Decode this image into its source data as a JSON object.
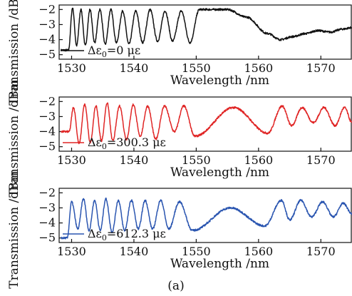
{
  "caption": "(a)",
  "chart_data": [
    {
      "type": "line",
      "xlabel": "Wavelength /nm",
      "ylabel": "Transmission /dBm",
      "xlim": [
        1528,
        1575
      ],
      "ylim": [
        -5.3,
        -1.7
      ],
      "xticks": [
        1530,
        1540,
        1550,
        1560,
        1570
      ],
      "yticks": [
        -2,
        -3,
        -4,
        -5
      ],
      "legend": {
        "prefix": "Δε",
        "subscript": "0",
        "value": "=0 με",
        "placement": "bottom-left"
      },
      "series": [
        {
          "color": "#111111",
          "x": [
            1529.5,
            1530.8,
            1532.2,
            1533.7,
            1535.4,
            1537.2,
            1539.2,
            1541.4,
            1543.8,
            1546.2,
            1549.0,
            1552.0,
            1555.0,
            1558.0,
            1561.5,
            1563.5,
            1565.5,
            1567.5,
            1569.5,
            1571.5,
            1573.5,
            1575
          ],
          "valley": [
            -4.7,
            -4.4,
            -4.4,
            -4.2,
            -4.3,
            -4.2,
            -4.3,
            -4.2,
            -4.1,
            -4.1,
            -4.2,
            -2.0,
            -2.0,
            -2.5,
            -3.6,
            -4.0,
            -3.8,
            -3.6,
            -3.4,
            -3.5,
            -3.3,
            -3.2
          ],
          "peaks": [
            -1.9,
            -2.0,
            -2.0,
            -2.0,
            -2.0,
            -2.1,
            -2.1,
            -2.0,
            -2.1,
            -2.1,
            -2.0
          ]
        }
      ]
    },
    {
      "type": "line",
      "xlabel": "Wavelength /nm",
      "ylabel": "Transmission /dBm",
      "xlim": [
        1528,
        1575
      ],
      "ylim": [
        -5.3,
        -1.7
      ],
      "xticks": [
        1530,
        1540,
        1550,
        1560,
        1570
      ],
      "yticks": [
        -2,
        -3,
        -4,
        -5
      ],
      "legend": {
        "prefix": "Δε",
        "subscript": "0",
        "value": "=300.3 με",
        "placement": "bottom-left"
      },
      "series": [
        {
          "color": "#e02525",
          "valleys": [
            [
              1529.6,
              -4.0
            ],
            [
              1531.2,
              -4.8
            ],
            [
              1533.0,
              -4.7
            ],
            [
              1534.8,
              -4.6
            ],
            [
              1536.6,
              -4.6
            ],
            [
              1538.8,
              -4.5
            ],
            [
              1541.0,
              -4.3
            ],
            [
              1543.5,
              -4.5
            ],
            [
              1546.5,
              -4.0
            ],
            [
              1549.8,
              -4.3
            ],
            [
              1561.5,
              -4.1
            ],
            [
              1565.3,
              -3.6
            ],
            [
              1568.8,
              -3.4
            ],
            [
              1572.3,
              -3.6
            ],
            [
              1575.0,
              -3.4
            ]
          ],
          "peaks": [
            [
              1530.3,
              -2.4
            ],
            [
              1532.1,
              -2.2
            ],
            [
              1533.9,
              -2.3
            ],
            [
              1535.7,
              -2.1
            ],
            [
              1537.7,
              -2.3
            ],
            [
              1539.9,
              -2.2
            ],
            [
              1542.2,
              -2.3
            ],
            [
              1544.9,
              -2.3
            ],
            [
              1548.0,
              -2.3
            ],
            [
              1556.0,
              -2.4
            ],
            [
              1563.8,
              -2.3
            ],
            [
              1567.0,
              -2.4
            ],
            [
              1570.5,
              -2.4
            ],
            [
              1573.8,
              -2.4
            ]
          ]
        }
      ]
    },
    {
      "type": "line",
      "xlabel": "Wavelength /nm",
      "ylabel": "Transmission /dBm",
      "xlim": [
        1528,
        1575
      ],
      "ylim": [
        -5.3,
        -1.7
      ],
      "xticks": [
        1530,
        1540,
        1550,
        1560,
        1570
      ],
      "yticks": [
        -2,
        -3,
        -4,
        -5
      ],
      "legend": {
        "prefix": "Δε",
        "subscript": "0",
        "value": "=612.3 με",
        "placement": "bottom-left"
      },
      "series": [
        {
          "color": "#2a55b0",
          "valleys": [
            [
              1529.3,
              -5.0
            ],
            [
              1531.0,
              -4.4
            ],
            [
              1532.8,
              -4.5
            ],
            [
              1534.6,
              -4.5
            ],
            [
              1536.5,
              -4.6
            ],
            [
              1538.5,
              -4.5
            ],
            [
              1540.7,
              -4.4
            ],
            [
              1543.0,
              -4.4
            ],
            [
              1545.6,
              -4.4
            ],
            [
              1549.4,
              -4.5
            ],
            [
              1561.0,
              -4.2
            ],
            [
              1565.0,
              -3.8
            ],
            [
              1568.5,
              -3.6
            ],
            [
              1572.0,
              -3.6
            ],
            [
              1575.0,
              -3.4
            ]
          ],
          "peaks": [
            [
              1530.0,
              -2.6
            ],
            [
              1531.9,
              -2.4
            ],
            [
              1533.7,
              -2.5
            ],
            [
              1535.5,
              -2.4
            ],
            [
              1537.5,
              -2.5
            ],
            [
              1539.6,
              -2.5
            ],
            [
              1541.8,
              -2.5
            ],
            [
              1544.3,
              -2.5
            ],
            [
              1547.3,
              -2.6
            ],
            [
              1555.5,
              -3.0
            ],
            [
              1563.7,
              -2.5
            ],
            [
              1566.8,
              -2.5
            ],
            [
              1570.3,
              -2.6
            ],
            [
              1573.6,
              -2.7
            ]
          ]
        }
      ]
    }
  ]
}
